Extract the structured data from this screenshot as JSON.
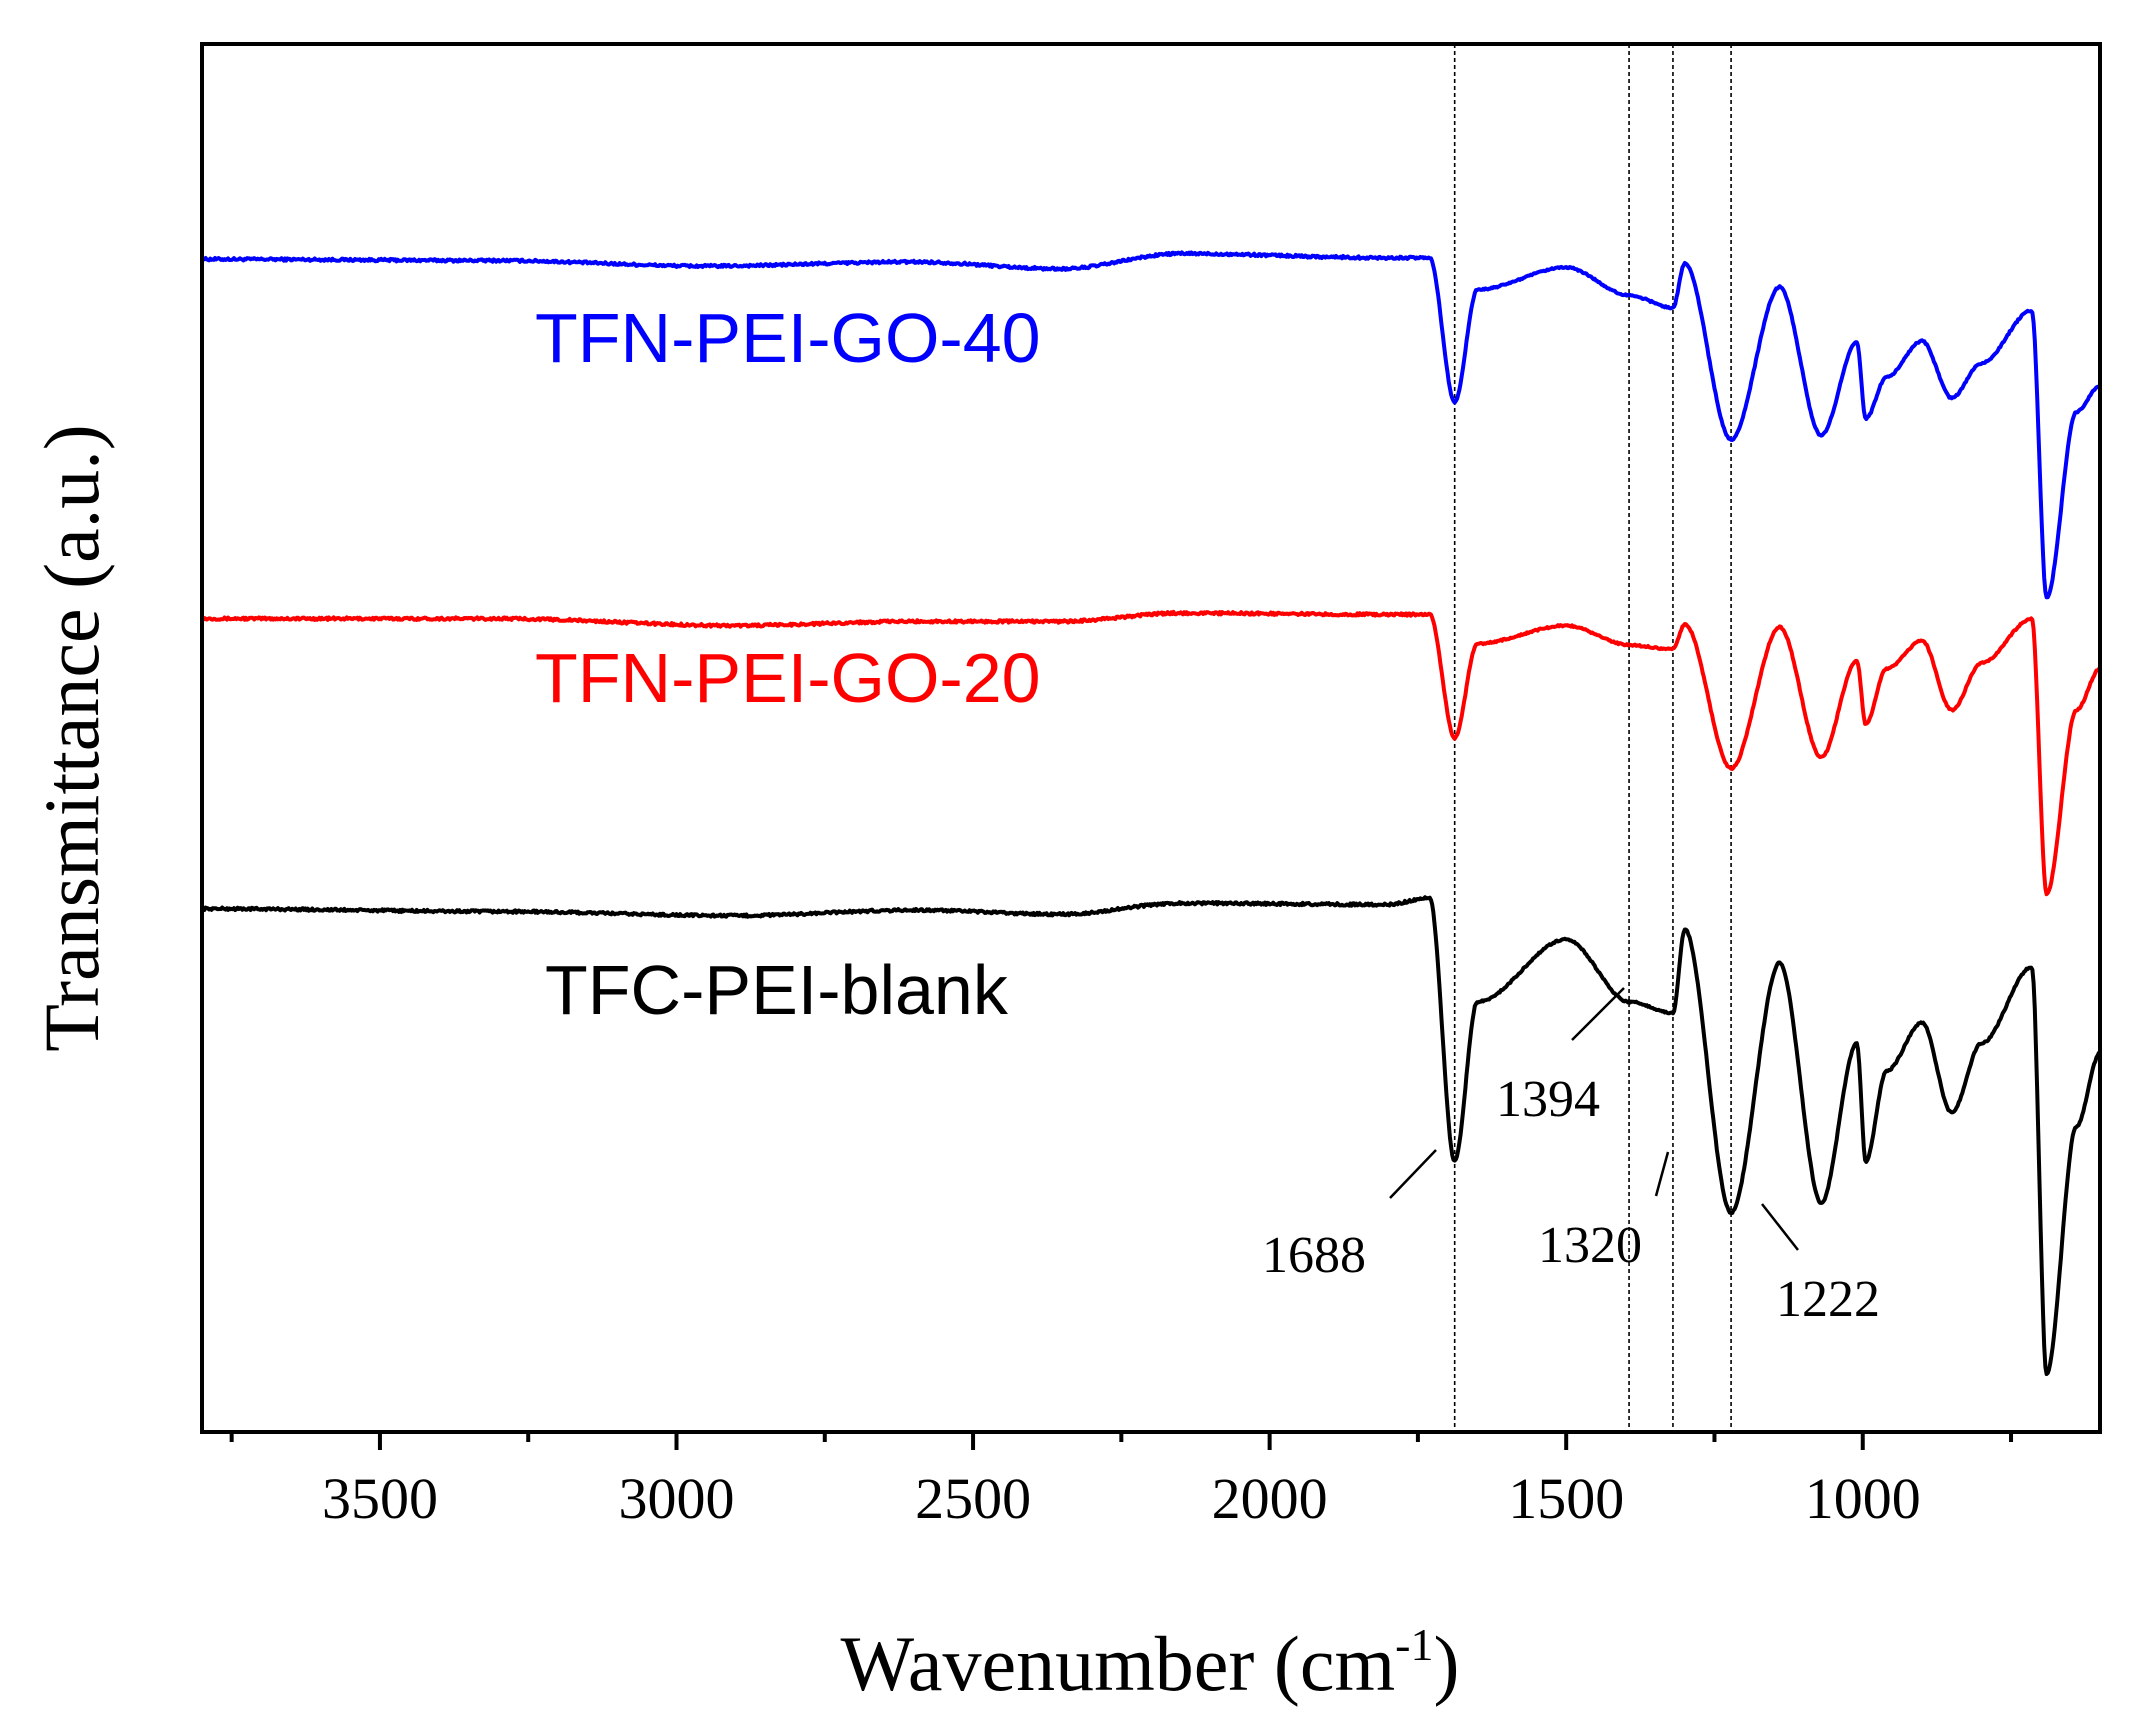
{
  "chart_data": {
    "type": "line",
    "title": "",
    "xlabel": "Wavenumber (cm",
    "xlabel_sup": "-1",
    "xlabel_close": ")",
    "ylabel": "Transmittance (a.u.)",
    "xlim": [
      3800,
      600
    ],
    "ylim": [
      0,
      100
    ],
    "x_ticks": [
      3500,
      3000,
      2500,
      2000,
      1500,
      1000
    ],
    "x_tick_labels": [
      "3500",
      "3000",
      "2500",
      "2000",
      "1500",
      "1000"
    ],
    "x_minor_step": 250,
    "reference_lines": [
      1688,
      1394,
      1320,
      1222
    ],
    "series": [
      {
        "name": "TFN-PEI-GO-40",
        "color": "#0000ff",
        "label_position": "upper-left",
        "offset": 0,
        "depth": 0.72,
        "features": [
          {
            "x": 3800,
            "y": 84.5
          },
          {
            "x": 3300,
            "y": 84.4
          },
          {
            "x": 2950,
            "y": 84.0
          },
          {
            "x": 2600,
            "y": 84.3
          },
          {
            "x": 2350,
            "y": 83.8
          },
          {
            "x": 2150,
            "y": 84.9
          },
          {
            "x": 1800,
            "y": 84.6
          },
          {
            "x": 1730,
            "y": 84.6
          },
          {
            "x": 1688,
            "y": 74.2
          },
          {
            "x": 1650,
            "y": 82.3
          },
          {
            "x": 1500,
            "y": 83.9
          },
          {
            "x": 1394,
            "y": 81.9
          },
          {
            "x": 1320,
            "y": 81.0
          },
          {
            "x": 1300,
            "y": 84.2
          },
          {
            "x": 1222,
            "y": 71.5
          },
          {
            "x": 1140,
            "y": 82.5
          },
          {
            "x": 1070,
            "y": 71.8
          },
          {
            "x": 1010,
            "y": 78.5
          },
          {
            "x": 995,
            "y": 73.0
          },
          {
            "x": 960,
            "y": 76.0
          },
          {
            "x": 900,
            "y": 78.6
          },
          {
            "x": 850,
            "y": 74.5
          },
          {
            "x": 800,
            "y": 77.0
          },
          {
            "x": 715,
            "y": 80.8
          },
          {
            "x": 690,
            "y": 60.1
          },
          {
            "x": 640,
            "y": 73.5
          },
          {
            "x": 600,
            "y": 75.4
          }
        ]
      },
      {
        "name": "TFN-PEI-GO-20",
        "color": "#ff0000",
        "label_position": "middle-left",
        "offset": 0,
        "depth": 0.72,
        "features": [
          {
            "x": 3800,
            "y": 58.6
          },
          {
            "x": 3300,
            "y": 58.6
          },
          {
            "x": 2900,
            "y": 58.1
          },
          {
            "x": 2600,
            "y": 58.4
          },
          {
            "x": 2350,
            "y": 58.4
          },
          {
            "x": 2150,
            "y": 59.0
          },
          {
            "x": 1800,
            "y": 58.9
          },
          {
            "x": 1730,
            "y": 58.9
          },
          {
            "x": 1688,
            "y": 50.0
          },
          {
            "x": 1650,
            "y": 56.8
          },
          {
            "x": 1500,
            "y": 58.1
          },
          {
            "x": 1394,
            "y": 56.7
          },
          {
            "x": 1320,
            "y": 56.4
          },
          {
            "x": 1300,
            "y": 58.2
          },
          {
            "x": 1222,
            "y": 47.8
          },
          {
            "x": 1140,
            "y": 58.0
          },
          {
            "x": 1070,
            "y": 48.6
          },
          {
            "x": 1010,
            "y": 55.6
          },
          {
            "x": 995,
            "y": 51.0
          },
          {
            "x": 960,
            "y": 55.0
          },
          {
            "x": 900,
            "y": 57.0
          },
          {
            "x": 850,
            "y": 52.0
          },
          {
            "x": 800,
            "y": 55.4
          },
          {
            "x": 715,
            "y": 58.6
          },
          {
            "x": 690,
            "y": 38.8
          },
          {
            "x": 640,
            "y": 52.0
          },
          {
            "x": 600,
            "y": 55.0
          }
        ]
      },
      {
        "name": "TFC-PEI-blank",
        "color": "#000000",
        "label_position": "lower-left",
        "offset": 0,
        "depth": 0.72,
        "features": [
          {
            "x": 3800,
            "y": 37.7
          },
          {
            "x": 3300,
            "y": 37.5
          },
          {
            "x": 2900,
            "y": 37.2
          },
          {
            "x": 2600,
            "y": 37.6
          },
          {
            "x": 2350,
            "y": 37.3
          },
          {
            "x": 2150,
            "y": 38.1
          },
          {
            "x": 1800,
            "y": 38.0
          },
          {
            "x": 1730,
            "y": 38.5
          },
          {
            "x": 1688,
            "y": 19.5
          },
          {
            "x": 1650,
            "y": 31.0
          },
          {
            "x": 1500,
            "y": 35.5
          },
          {
            "x": 1394,
            "y": 31.0
          },
          {
            "x": 1320,
            "y": 30.2
          },
          {
            "x": 1300,
            "y": 36.2
          },
          {
            "x": 1222,
            "y": 15.8
          },
          {
            "x": 1140,
            "y": 33.8
          },
          {
            "x": 1070,
            "y": 16.5
          },
          {
            "x": 1010,
            "y": 28.0
          },
          {
            "x": 995,
            "y": 19.5
          },
          {
            "x": 960,
            "y": 26.0
          },
          {
            "x": 900,
            "y": 29.5
          },
          {
            "x": 850,
            "y": 23.0
          },
          {
            "x": 800,
            "y": 28.0
          },
          {
            "x": 715,
            "y": 33.5
          },
          {
            "x": 690,
            "y": 4.2
          },
          {
            "x": 640,
            "y": 22.0
          },
          {
            "x": 600,
            "y": 27.3
          }
        ]
      }
    ],
    "annotations": [
      {
        "text": "1688",
        "x": 1688,
        "y": 19.5
      },
      {
        "text": "1394",
        "x": 1394,
        "y": 31.0
      },
      {
        "text": "1320",
        "x": 1320,
        "y": 30.2
      },
      {
        "text": "1222",
        "x": 1222,
        "y": 15.8
      }
    ]
  }
}
